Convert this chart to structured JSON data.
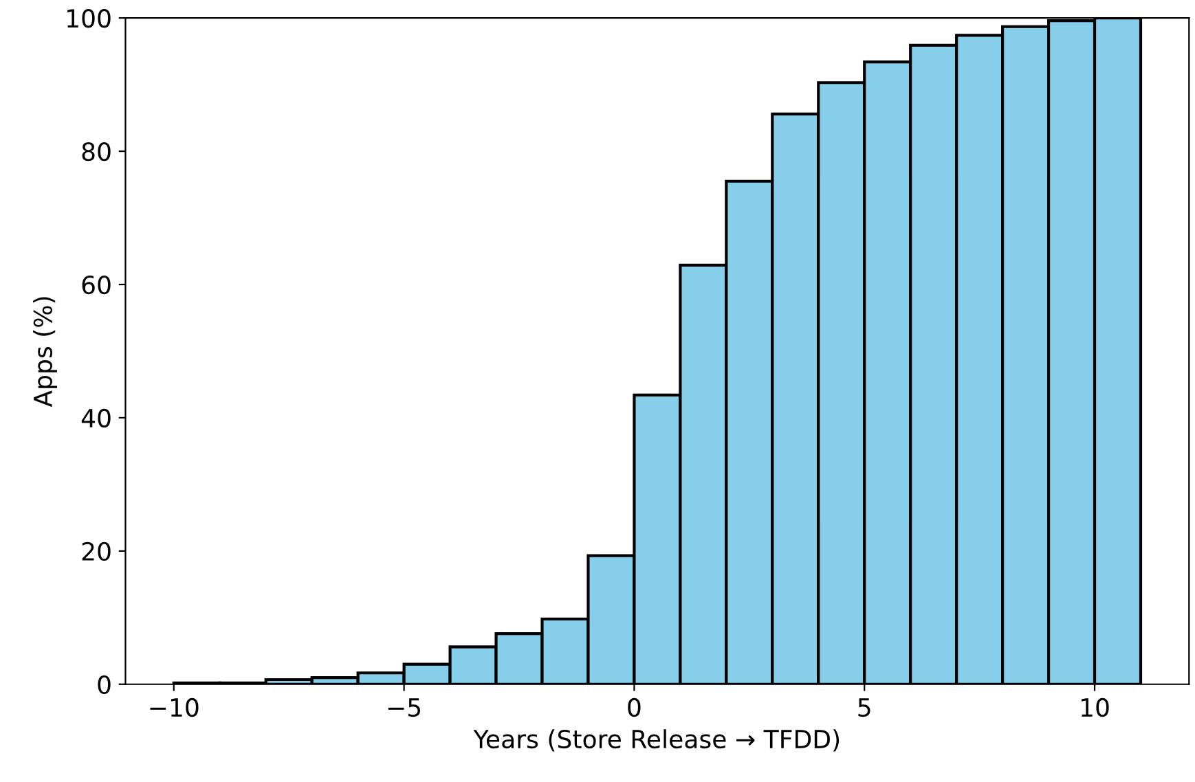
{
  "chart_data": {
    "type": "histogram",
    "xlabel": "Years (Store Release → TFDD)",
    "ylabel": "Apps (%)",
    "bins": [
      -10,
      -9,
      -8,
      -7,
      -6,
      -5,
      -4,
      -3,
      -2,
      -1,
      0,
      1,
      2,
      3,
      4,
      5,
      6,
      7,
      8,
      9,
      10,
      11
    ],
    "values": [
      0.2,
      0.2,
      0.7,
      1.0,
      1.7,
      3.0,
      5.6,
      7.6,
      9.8,
      19.3,
      43.4,
      62.9,
      75.5,
      85.6,
      90.3,
      93.4,
      95.9,
      97.4,
      98.7,
      99.6,
      100
    ],
    "color": "#87ceeb",
    "xlim": [
      -11.05,
      12.05
    ],
    "xticks": [
      {
        "value": -10,
        "label": "−10"
      },
      {
        "value": -5,
        "label": "−5"
      },
      0,
      5,
      10
    ],
    "ylim": [
      0,
      100
    ],
    "yticks": [
      0,
      20,
      40,
      60,
      80,
      100
    ],
    "grid": false,
    "legend": false
  }
}
